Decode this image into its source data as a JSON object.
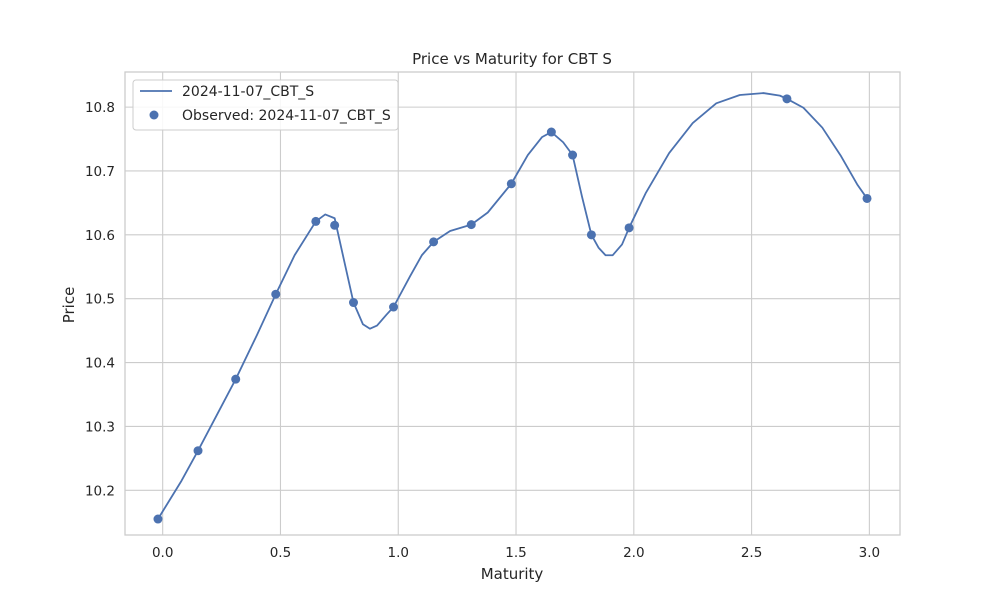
{
  "chart_data": {
    "type": "line",
    "title": "Price vs Maturity for CBT S",
    "xlabel": "Maturity",
    "ylabel": "Price",
    "xlim": [
      -0.16,
      3.13
    ],
    "ylim": [
      10.13,
      10.855
    ],
    "x_ticks": [
      0.0,
      0.5,
      1.0,
      1.5,
      2.0,
      2.5,
      3.0
    ],
    "x_tick_labels": [
      "0.0",
      "0.5",
      "1.0",
      "1.5",
      "2.0",
      "2.5",
      "3.0"
    ],
    "y_ticks": [
      10.2,
      10.3,
      10.4,
      10.5,
      10.6,
      10.7,
      10.8
    ],
    "y_tick_labels": [
      "10.2",
      "10.3",
      "10.4",
      "10.5",
      "10.6",
      "10.7",
      "10.8"
    ],
    "grid": true,
    "legend_position": "top-left",
    "colors": {
      "series": "#4c72b0",
      "grid": "#cccccc",
      "text": "#262626"
    },
    "series": [
      {
        "name": "2024-11-07_CBT_S",
        "kind": "line",
        "x": [
          -0.02,
          0.08,
          0.15,
          0.23,
          0.31,
          0.4,
          0.48,
          0.56,
          0.65,
          0.69,
          0.73,
          0.77,
          0.81,
          0.85,
          0.88,
          0.91,
          0.95,
          0.98,
          1.05,
          1.1,
          1.15,
          1.22,
          1.31,
          1.38,
          1.48,
          1.55,
          1.61,
          1.65,
          1.7,
          1.74,
          1.78,
          1.82,
          1.85,
          1.88,
          1.91,
          1.95,
          1.98,
          2.05,
          2.15,
          2.25,
          2.35,
          2.45,
          2.55,
          2.62,
          2.65,
          2.72,
          2.8,
          2.88,
          2.95,
          2.99
        ],
        "y": [
          10.155,
          10.215,
          10.262,
          10.318,
          10.374,
          10.443,
          10.507,
          10.568,
          10.621,
          10.632,
          10.626,
          10.56,
          10.494,
          10.46,
          10.453,
          10.458,
          10.475,
          10.487,
          10.535,
          10.568,
          10.589,
          10.606,
          10.616,
          10.635,
          10.68,
          10.725,
          10.753,
          10.761,
          10.745,
          10.725,
          10.66,
          10.6,
          10.58,
          10.568,
          10.568,
          10.585,
          10.611,
          10.665,
          10.728,
          10.775,
          10.806,
          10.819,
          10.822,
          10.818,
          10.813,
          10.799,
          10.768,
          10.723,
          10.678,
          10.657
        ]
      },
      {
        "name": "Observed: 2024-11-07_CBT_S",
        "kind": "scatter",
        "x": [
          -0.02,
          0.15,
          0.31,
          0.48,
          0.65,
          0.73,
          0.81,
          0.98,
          1.15,
          1.31,
          1.48,
          1.65,
          1.74,
          1.82,
          1.98,
          2.65,
          2.99
        ],
        "y": [
          10.155,
          10.262,
          10.374,
          10.507,
          10.621,
          10.615,
          10.494,
          10.487,
          10.589,
          10.616,
          10.68,
          10.761,
          10.725,
          10.6,
          10.611,
          10.813,
          10.657
        ]
      }
    ]
  }
}
